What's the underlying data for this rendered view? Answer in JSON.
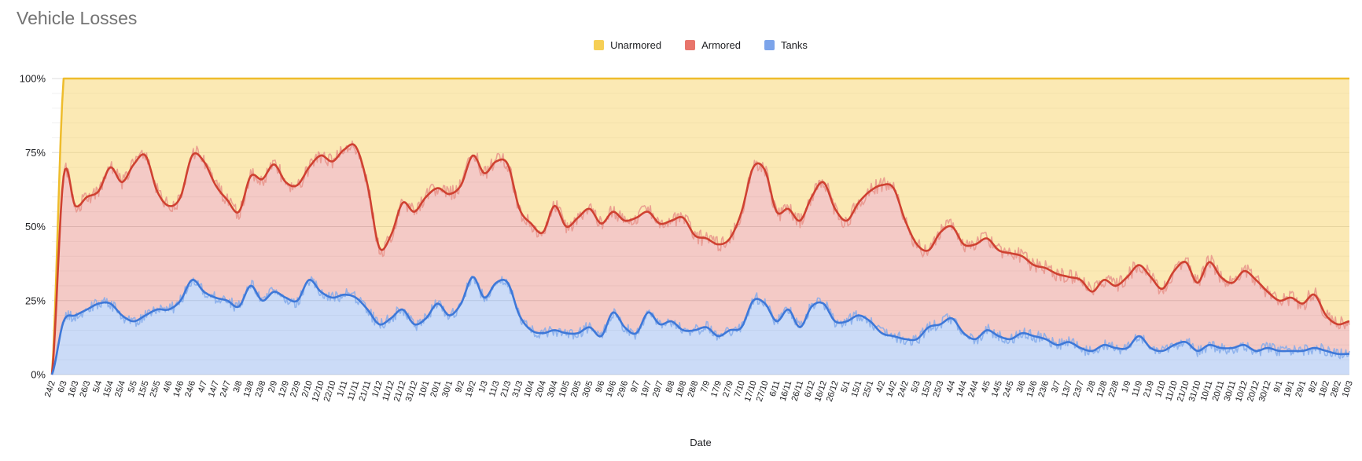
{
  "page": {
    "title": "Vehicle Losses"
  },
  "legend": {
    "items": [
      {
        "label": "Unarmored",
        "swatch_color": "#f6cf55"
      },
      {
        "label": "Armored",
        "swatch_color": "#e8756b"
      },
      {
        "label": "Tanks",
        "swatch_color": "#7ca4ea"
      }
    ]
  },
  "chart_data": {
    "type": "area",
    "stacking": "percent",
    "title": "Vehicle Losses",
    "xlabel": "Date",
    "ylabel": "",
    "ylim": [
      0,
      100
    ],
    "grid": {
      "major_step_pct": 25,
      "minor_step_pct": 5,
      "major_color": "#dcdcdc",
      "minor_color": "#f1f1f1"
    },
    "legend_position": "top-center",
    "y_tick_labels": [
      "0%",
      "25%",
      "50%",
      "75%",
      "100%"
    ],
    "y_tick_values": [
      0,
      25,
      50,
      75,
      100
    ],
    "categories": [
      "24/2",
      "6/3",
      "16/3",
      "26/3",
      "5/4",
      "15/4",
      "25/4",
      "5/5",
      "15/5",
      "25/5",
      "4/6",
      "14/6",
      "24/6",
      "4/7",
      "14/7",
      "24/7",
      "3/8",
      "13/8",
      "23/8",
      "2/9",
      "12/9",
      "22/9",
      "2/10",
      "12/10",
      "22/10",
      "1/11",
      "11/11",
      "21/11",
      "1/12",
      "11/12",
      "21/12",
      "31/12",
      "10/1",
      "20/1",
      "30/1",
      "9/2",
      "19/2",
      "1/3",
      "11/3",
      "21/3",
      "31/3",
      "10/4",
      "20/4",
      "30/4",
      "10/5",
      "20/5",
      "30/5",
      "9/6",
      "19/6",
      "29/6",
      "9/7",
      "19/7",
      "29/7",
      "8/8",
      "18/8",
      "28/8",
      "7/9",
      "17/9",
      "27/9",
      "7/10",
      "17/10",
      "27/10",
      "6/11",
      "16/11",
      "26/11",
      "6/12",
      "16/12",
      "26/12",
      "5/1",
      "15/1",
      "25/1",
      "4/2",
      "14/2",
      "24/2",
      "5/3",
      "15/3",
      "25/3",
      "4/4",
      "14/4",
      "24/4",
      "4/5",
      "14/5",
      "24/5",
      "3/6",
      "13/6",
      "23/6",
      "3/7",
      "13/7",
      "23/7",
      "2/8",
      "12/8",
      "22/8",
      "1/9",
      "11/9",
      "21/9",
      "1/10",
      "11/10",
      "21/10",
      "31/10",
      "10/11",
      "20/11",
      "30/11",
      "10/12",
      "20/12",
      "30/12",
      "9/1",
      "19/1",
      "29/1",
      "8/2",
      "18/2",
      "28/2",
      "10/3"
    ],
    "series": [
      {
        "name": "Tanks",
        "stack_order": 1,
        "fill_color": "rgba(124,164,234,0.40)",
        "line_smooth_color": "#3e78d8",
        "line_raw_color": "#85aceb",
        "values": [
          0,
          18,
          20,
          22,
          24,
          24,
          20,
          18,
          20,
          22,
          22,
          25,
          32,
          28,
          26,
          25,
          23,
          30,
          25,
          28,
          26,
          25,
          32,
          28,
          26,
          27,
          26,
          22,
          17,
          19,
          22,
          17,
          19,
          24,
          20,
          24,
          33,
          26,
          31,
          31,
          20,
          15,
          14,
          15,
          14,
          14,
          16,
          13,
          21,
          16,
          14,
          21,
          17,
          18,
          15,
          15,
          16,
          13,
          15,
          16,
          25,
          24,
          18,
          22,
          16,
          23,
          24,
          18,
          18,
          20,
          18,
          14,
          13,
          12,
          12,
          16,
          17,
          19,
          14,
          12,
          15,
          13,
          12,
          14,
          13,
          12,
          10,
          11,
          9,
          8,
          10,
          9,
          9,
          13,
          9,
          8,
          10,
          11,
          8,
          10,
          9,
          9,
          10,
          8,
          9,
          8,
          8,
          8,
          9,
          8,
          7,
          7
        ]
      },
      {
        "name": "Armored",
        "stack_order": 2,
        "fill_color": "rgba(224,102,93,0.35)",
        "line_smooth_color": "#cf4131",
        "line_raw_color": "#e8948b",
        "values": [
          0,
          49,
          37,
          38,
          38,
          46,
          45,
          53,
          54,
          40,
          35,
          35,
          42,
          44,
          38,
          34,
          32,
          37,
          41,
          43,
          39,
          39,
          38,
          46,
          46,
          49,
          51,
          42,
          26,
          28,
          36,
          38,
          41,
          39,
          41,
          40,
          41,
          42,
          41,
          40,
          36,
          36,
          34,
          42,
          36,
          39,
          40,
          38,
          34,
          36,
          39,
          34,
          34,
          34,
          38,
          32,
          30,
          31,
          31,
          39,
          45,
          45,
          37,
          34,
          36,
          37,
          41,
          38,
          34,
          38,
          44,
          50,
          50,
          40,
          32,
          26,
          31,
          31,
          30,
          32,
          31,
          29,
          29,
          26,
          24,
          24,
          24,
          22,
          23,
          20,
          22,
          21,
          24,
          24,
          24,
          21,
          25,
          27,
          23,
          28,
          24,
          22,
          25,
          24,
          19,
          17,
          18,
          16,
          18,
          12,
          10,
          11
        ]
      },
      {
        "name": "Unarmored",
        "stack_order": 3,
        "fill_color": "rgba(246,203,77,0.42)",
        "line_smooth_color": "#eebc2c",
        "line_raw_color": "#f3ca55",
        "values": [
          0,
          33,
          43,
          40,
          38,
          30,
          35,
          29,
          26,
          38,
          43,
          40,
          26,
          28,
          36,
          41,
          45,
          33,
          34,
          29,
          35,
          36,
          30,
          26,
          28,
          24,
          23,
          36,
          57,
          53,
          42,
          45,
          40,
          37,
          39,
          36,
          26,
          32,
          28,
          29,
          44,
          49,
          52,
          43,
          50,
          47,
          44,
          49,
          45,
          48,
          47,
          45,
          49,
          48,
          47,
          53,
          54,
          56,
          54,
          45,
          30,
          31,
          45,
          44,
          48,
          40,
          35,
          44,
          48,
          42,
          38,
          36,
          37,
          48,
          56,
          58,
          52,
          50,
          56,
          56,
          54,
          58,
          59,
          60,
          63,
          64,
          66,
          67,
          68,
          72,
          68,
          70,
          67,
          63,
          67,
          71,
          65,
          62,
          69,
          62,
          67,
          69,
          65,
          68,
          72,
          75,
          74,
          76,
          73,
          80,
          83,
          82
        ]
      }
    ]
  }
}
